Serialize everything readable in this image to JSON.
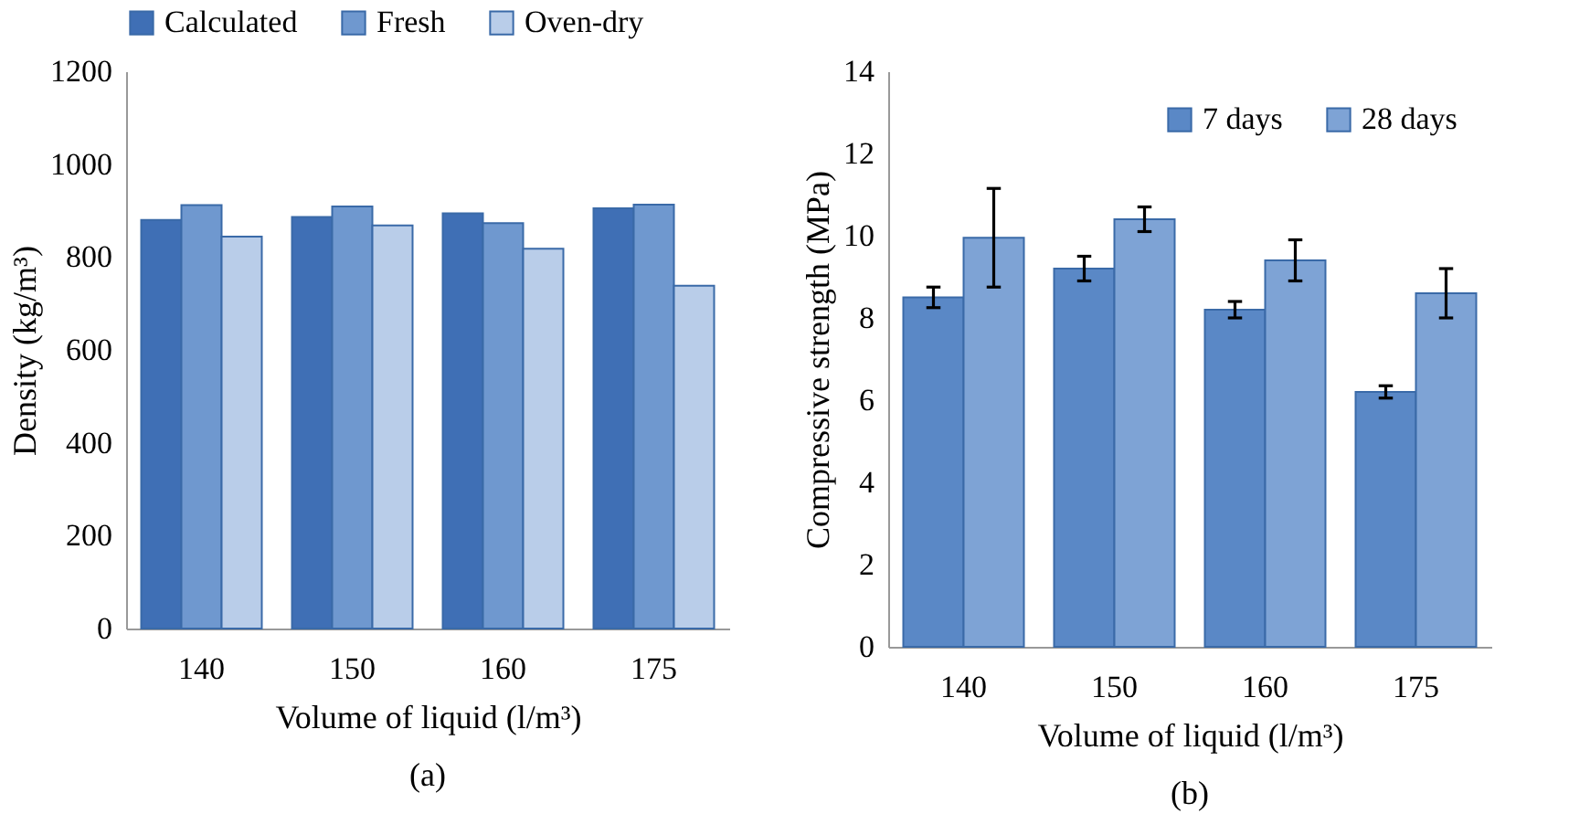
{
  "chart_data": [
    {
      "type": "bar",
      "title": "(a)",
      "xlabel": "Volume of liquid (l/m³)",
      "ylabel": "Density (kg/m³)",
      "categories": [
        "140",
        "150",
        "160",
        "175"
      ],
      "ylim": [
        0,
        1200
      ],
      "yticks": [
        0,
        200,
        400,
        600,
        800,
        1000,
        1200
      ],
      "grid": false,
      "legend": "top",
      "series": [
        {
          "name": "Calculated",
          "color": "#3f6fb5",
          "values": [
            880,
            886,
            894,
            905
          ]
        },
        {
          "name": "Fresh",
          "color": "#6f98cf",
          "values": [
            912,
            909,
            873,
            913
          ]
        },
        {
          "name": "Oven-dry",
          "color": "#b9cde9",
          "values": [
            844,
            868,
            818,
            738
          ]
        }
      ]
    },
    {
      "type": "bar",
      "title": "(b)",
      "xlabel": "Volume of liquid (l/m³)",
      "ylabel": "Compressive strength (MPa)",
      "categories": [
        "140",
        "150",
        "160",
        "175"
      ],
      "ylim": [
        0,
        14
      ],
      "yticks": [
        0,
        2,
        4,
        6,
        8,
        10,
        12,
        14
      ],
      "grid": false,
      "legend": "top right",
      "series": [
        {
          "name": "7 days",
          "color": "#5a88c6",
          "values": [
            8.5,
            9.2,
            8.2,
            6.2
          ],
          "errors": [
            0.25,
            0.3,
            0.2,
            0.15
          ]
        },
        {
          "name": "28 days",
          "color": "#7ea3d5",
          "values": [
            9.95,
            10.4,
            9.4,
            8.6
          ],
          "errors": [
            1.2,
            0.3,
            0.5,
            0.6
          ]
        }
      ]
    }
  ]
}
